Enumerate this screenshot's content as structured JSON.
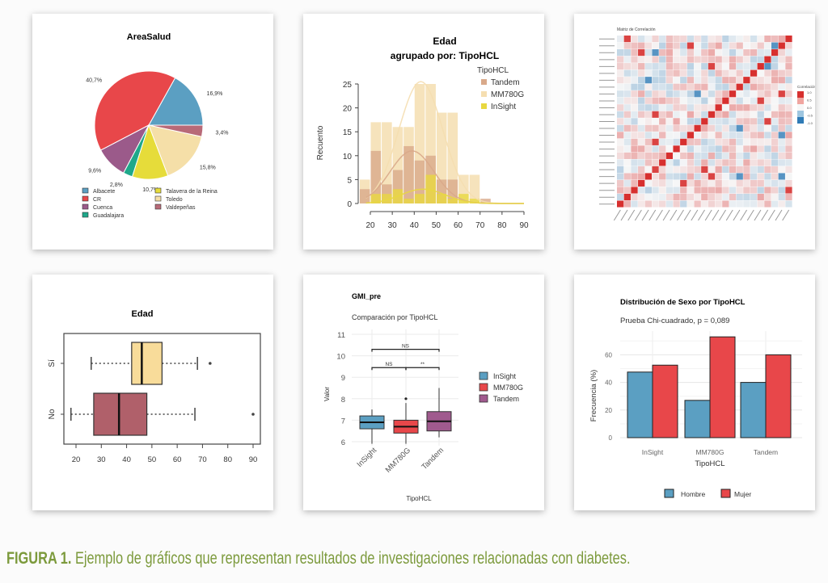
{
  "caption": {
    "label": "FIGURA 1.",
    "text": " Ejemplo de gráficos que representan resultados de investigaciones relacionadas con diabetes."
  },
  "colors": {
    "caption": "#7c9a3c"
  },
  "chart_data": [
    {
      "type": "pie",
      "title": "AreaSalud",
      "slices": [
        {
          "label": "Albacete",
          "value": 16.9,
          "text": "16,9%",
          "color": "#5b9fc2"
        },
        {
          "label": "CR",
          "value": 40.7,
          "text": "40,7%",
          "color": "#e8474a"
        },
        {
          "label": "Cuenca",
          "value": 9.6,
          "text": "9,6%",
          "color": "#9b5a8a"
        },
        {
          "label": "Guadalajara",
          "value": 2.8,
          "text": "2,8%",
          "color": "#1fa88a"
        },
        {
          "label": "Talavera de la Reina",
          "value": 10.7,
          "text": "10,7%",
          "color": "#e6dc3a"
        },
        {
          "label": "Toledo",
          "value": 15.8,
          "text": "15,8%",
          "color": "#f5dfa8"
        },
        {
          "label": "Valdepeñas",
          "value": 3.4,
          "text": "3,4%",
          "color": "#b86a78"
        }
      ],
      "legend": "bottom"
    },
    {
      "type": "bar",
      "subtype": "histogram-overlay",
      "title": [
        "Edad",
        "agrupado por: TipoHCL"
      ],
      "ylabel": "Recuento",
      "xlabel": "",
      "xlim": [
        15,
        90
      ],
      "ylim": [
        0,
        25
      ],
      "xticks": [
        20,
        30,
        40,
        50,
        60,
        70,
        80,
        90
      ],
      "yticks": [
        0,
        5,
        10,
        15,
        20,
        25
      ],
      "bin_width": 5,
      "bin_starts": [
        15,
        20,
        25,
        30,
        35,
        40,
        45,
        50,
        55,
        60,
        65,
        70,
        75,
        80,
        85
      ],
      "legend_title": "TipoHCL",
      "series": [
        {
          "name": "MM780G",
          "color": "#f5deb0",
          "values": [
            5,
            17,
            17,
            16,
            16,
            25,
            25,
            19,
            19,
            6,
            6,
            0,
            0,
            0,
            0
          ],
          "density": {
            "mean": 43,
            "sd": 10,
            "peak": 25.5
          }
        },
        {
          "name": "Tandem",
          "color": "#d9a98a",
          "values": [
            3,
            11,
            4,
            7,
            12,
            9,
            10,
            5,
            5,
            0,
            0,
            1,
            0,
            0,
            0
          ],
          "density": {
            "mean": 39,
            "sd": 10,
            "peak": 11
          }
        },
        {
          "name": "InSight",
          "color": "#e8d840",
          "values": [
            0,
            2,
            2,
            3,
            1,
            2,
            6,
            2,
            1,
            2,
            1,
            0,
            0,
            0,
            0
          ],
          "density": {
            "mean": 44,
            "sd": 10,
            "peak": 3
          }
        }
      ],
      "legend_order": [
        "Tandem",
        "MM780G",
        "InSight"
      ]
    },
    {
      "type": "heatmap",
      "title": "Matriz de Correlación",
      "n_vars": 25,
      "legend_title": "Correlación",
      "legend_ticks": [
        "1.0",
        "0.5",
        "0.0",
        "-0.5",
        "-1.0"
      ],
      "scale": {
        "low": "#2f7bb6",
        "mid": "#f7f7f7",
        "high": "#d7302f"
      }
    },
    {
      "type": "boxplot",
      "orientation": "horizontal",
      "title": "Edad",
      "xlim": [
        15,
        92
      ],
      "xticks": [
        20,
        30,
        40,
        50,
        60,
        70,
        80,
        90
      ],
      "groups": [
        {
          "name": "Sí",
          "color": "#f8dc9a",
          "min": 26,
          "q1": 42,
          "median": 46,
          "q3": 54,
          "max": 68,
          "outliers": [
            73
          ]
        },
        {
          "name": "No",
          "color": "#b0606a",
          "min": 18,
          "q1": 27,
          "median": 37,
          "q3": 48,
          "max": 67,
          "outliers": [
            90
          ]
        }
      ]
    },
    {
      "type": "boxplot",
      "title": "GMI_pre",
      "subtitle": "Comparación por TipoHCL",
      "ylabel": "Valor",
      "xlabel": "TipoHCL",
      "ylim": [
        5.8,
        11.2
      ],
      "yticks": [
        6,
        7,
        8,
        9,
        10,
        11
      ],
      "groups": [
        {
          "name": "InSight",
          "color": "#5b9fc2",
          "min": 5.9,
          "q1": 6.6,
          "median": 6.9,
          "q3": 7.2,
          "max": 7.5,
          "outliers": []
        },
        {
          "name": "MM780G",
          "color": "#e8474a",
          "min": 5.9,
          "q1": 6.4,
          "median": 6.7,
          "q3": 7.0,
          "max": 7.8,
          "outliers": [
            8.0
          ]
        },
        {
          "name": "Tandem",
          "color": "#a05a8e",
          "min": 6.2,
          "q1": 6.5,
          "median": 6.95,
          "q3": 7.4,
          "max": 8.5,
          "outliers": []
        }
      ],
      "comparisons": [
        {
          "from": "InSight",
          "to": "Tandem",
          "y": 10.3,
          "label": "NS"
        },
        {
          "from": "InSight",
          "to": "MM780G",
          "y": 9.45,
          "label": "NS"
        },
        {
          "from": "MM780G",
          "to": "Tandem",
          "y": 9.45,
          "label": "**"
        }
      ],
      "legend": "right"
    },
    {
      "type": "bar",
      "title": "Distribución de Sexo por TipoHCL",
      "subtitle": "Prueba Chi-cuadrado, p = 0,089",
      "xlabel": "TipoHCL",
      "ylabel": "Frecuencia (%)",
      "ylim": [
        0,
        75
      ],
      "yticks": [
        0,
        20,
        40,
        60
      ],
      "categories": [
        "InSight",
        "MM780G",
        "Tandem"
      ],
      "series": [
        {
          "name": "Hombre",
          "color": "#5b9fc2",
          "values": [
            47.5,
            27,
            40
          ]
        },
        {
          "name": "Mujer",
          "color": "#e8474a",
          "values": [
            52.5,
            73,
            60
          ]
        }
      ],
      "legend": "bottom"
    }
  ]
}
